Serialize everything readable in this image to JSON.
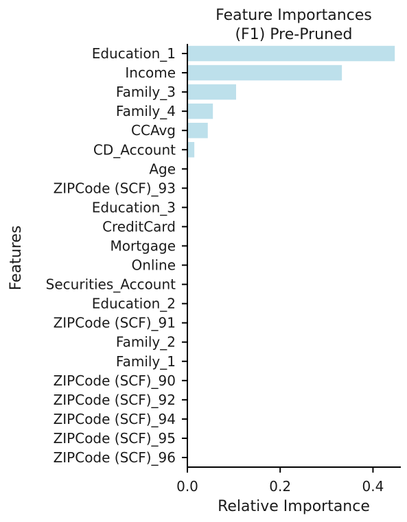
{
  "chart_data": {
    "type": "bar",
    "orientation": "horizontal",
    "title": [
      "Feature Importances",
      "(F1) Pre-Pruned"
    ],
    "xlabel": "Relative Importance",
    "ylabel": "Features",
    "xlim": [
      0,
      0.46
    ],
    "xticks": [
      "0.0",
      "0.2",
      "0.4"
    ],
    "xtick_values": [
      0.0,
      0.2,
      0.4
    ],
    "grid": false,
    "bar_color": "#add8e6",
    "categories": [
      "Education_1",
      "Income",
      "Family_3",
      "Family_4",
      "CCAvg",
      "CD_Account",
      "Age",
      "ZIPCode (SCF)_93",
      "Education_3",
      "CreditCard",
      "Mortgage",
      "Online",
      "Securities_Account",
      "Education_2",
      "ZIPCode (SCF)_91",
      "Family_2",
      "Family_1",
      "ZIPCode (SCF)_90",
      "ZIPCode (SCF)_92",
      "ZIPCode (SCF)_94",
      "ZIPCode (SCF)_95",
      "ZIPCode (SCF)_96"
    ],
    "values": [
      0.447,
      0.333,
      0.105,
      0.055,
      0.044,
      0.015,
      0,
      0,
      0,
      0,
      0,
      0,
      0,
      0,
      0,
      0,
      0,
      0,
      0,
      0,
      0,
      0
    ]
  }
}
